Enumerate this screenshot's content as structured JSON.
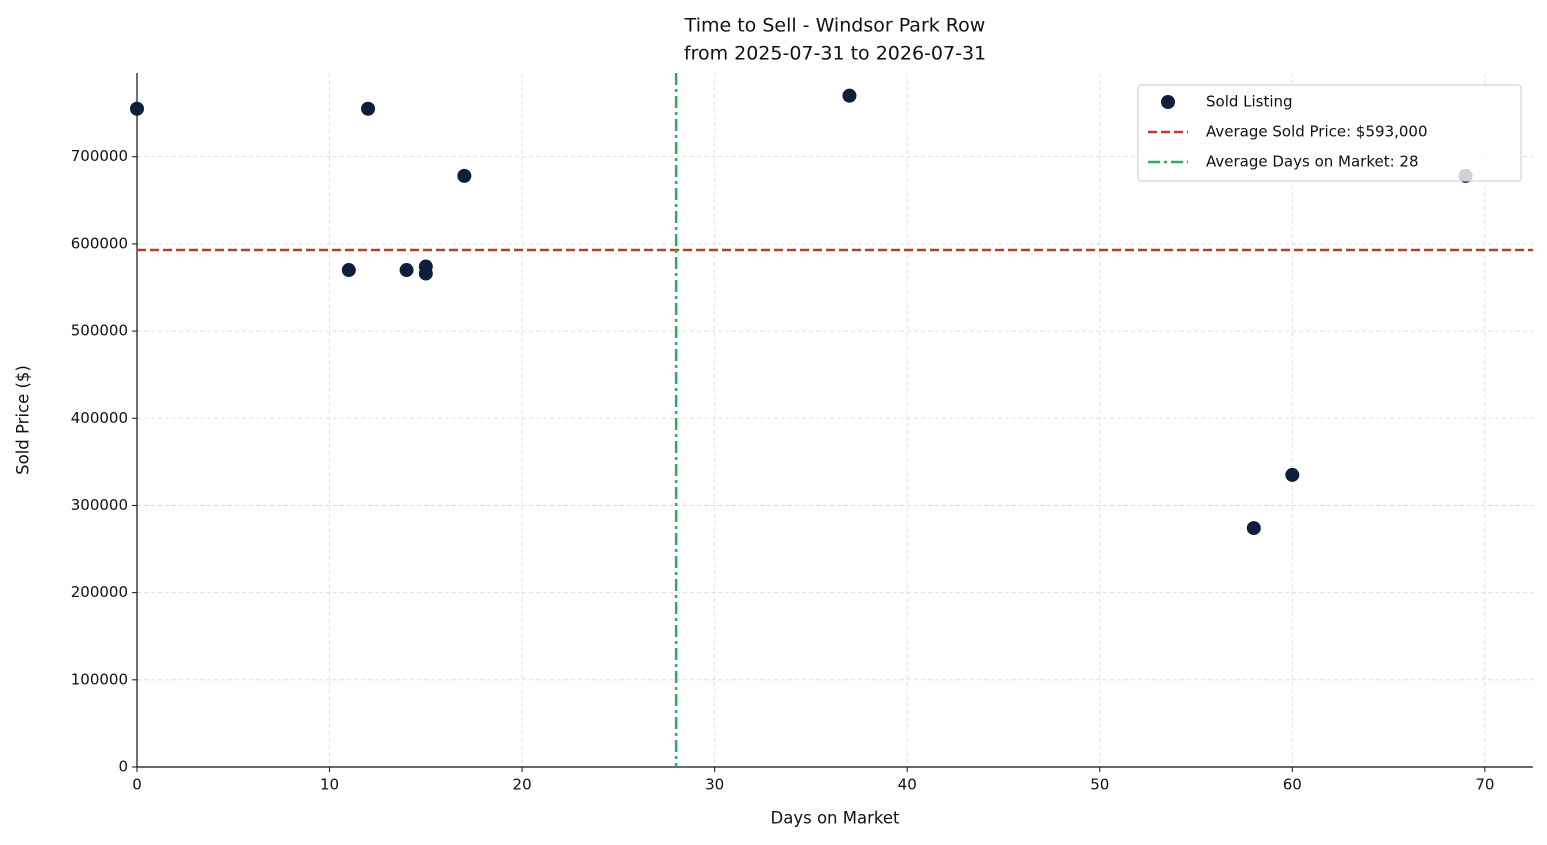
{
  "chart_data": {
    "type": "scatter",
    "title": "Time to Sell - Windsor Park Row",
    "subtitle": "from 2025-07-31 to 2026-07-31",
    "xlabel": "Days on Market",
    "ylabel": "Sold Price ($)",
    "series": [
      {
        "name": "Sold Listing",
        "color": "#0d1f3c",
        "x": [
          0,
          12,
          37,
          17,
          11,
          14,
          15,
          15,
          58,
          60,
          69
        ],
        "values": [
          755000,
          755000,
          770000,
          678000,
          570000,
          570000,
          574000,
          566000,
          274000,
          335000,
          678000
        ]
      }
    ],
    "reference_lines": [
      {
        "name": "Average Sold Price: $593,000",
        "color": "#c0392b",
        "orientation": "horizontal",
        "value": 593000,
        "dash": "dashed"
      },
      {
        "name": "Average Days on Market: 28",
        "color": "#27ae60",
        "orientation": "vertical",
        "value": 28,
        "dash": "dashdot"
      }
    ],
    "xlim": [
      0,
      72.5
    ],
    "ylim": [
      0,
      796000
    ],
    "xticks": [
      0,
      10,
      20,
      30,
      40,
      50,
      60,
      70
    ],
    "yticks": [
      0,
      100000,
      200000,
      300000,
      400000,
      500000,
      600000,
      700000
    ],
    "grid": true,
    "legend": "upper-right"
  }
}
